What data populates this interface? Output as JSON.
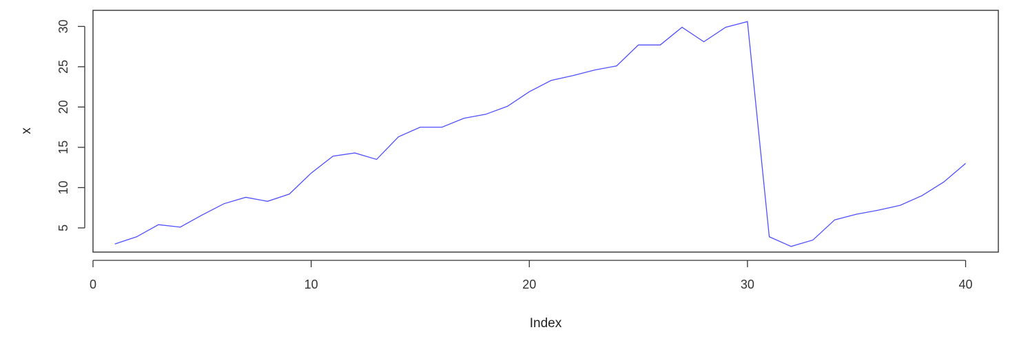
{
  "chart_data": {
    "type": "line",
    "title": "",
    "xlabel": "Index",
    "ylabel": "x",
    "xlim": [
      0,
      41.5
    ],
    "ylim": [
      2,
      32
    ],
    "xticks": [
      0,
      10,
      20,
      30,
      40
    ],
    "yticks": [
      5,
      10,
      15,
      20,
      25,
      30
    ],
    "grid": false,
    "line_color": "#4f4fff",
    "series": [
      {
        "x": [
          1,
          2,
          3,
          4,
          5,
          6,
          7,
          8,
          9,
          10,
          11,
          12,
          13,
          14,
          15,
          16,
          17,
          18,
          19,
          20,
          21,
          22,
          23,
          24,
          25,
          26,
          27,
          28,
          29,
          30,
          31,
          32,
          33,
          34,
          35,
          36,
          37,
          38,
          39,
          40
        ],
        "values": [
          3.0,
          3.9,
          5.4,
          5.1,
          6.6,
          8.0,
          8.8,
          8.3,
          9.2,
          11.8,
          13.9,
          14.3,
          13.5,
          16.3,
          17.5,
          17.5,
          18.6,
          19.1,
          20.1,
          21.9,
          23.3,
          23.9,
          24.6,
          25.1,
          27.7,
          27.7,
          29.9,
          28.1,
          29.9,
          30.6,
          3.9,
          2.7,
          3.5,
          6.0,
          6.7,
          7.2,
          7.8,
          9.0,
          10.7,
          13.0
        ]
      }
    ]
  }
}
